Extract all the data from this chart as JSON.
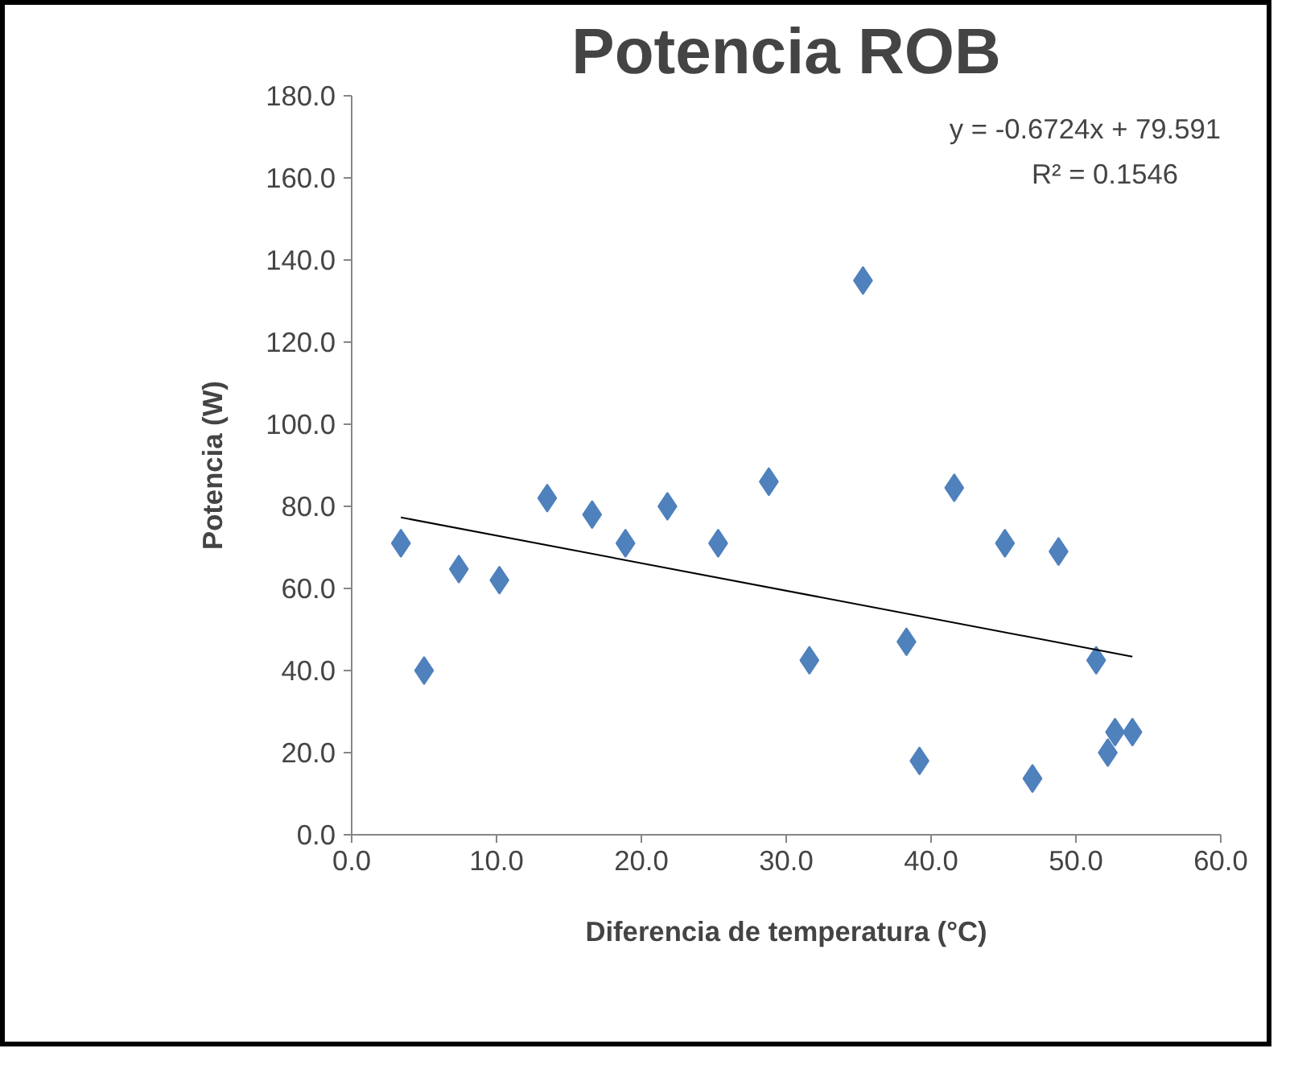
{
  "chart_data": {
    "type": "scatter",
    "title": "Potencia ROB",
    "xlabel": "Diferencia de temperatura (°C)",
    "ylabel": "Potencia (W)",
    "xlim": [
      0,
      60
    ],
    "ylim": [
      0,
      180
    ],
    "xticks": [
      {
        "value": 0,
        "label": "0.0"
      },
      {
        "value": 10,
        "label": "10.0"
      },
      {
        "value": 20,
        "label": "20.0"
      },
      {
        "value": 30,
        "label": "30.0"
      },
      {
        "value": 40,
        "label": "40.0"
      },
      {
        "value": 50,
        "label": "50.0"
      },
      {
        "value": 60,
        "label": "60.0"
      }
    ],
    "yticks": [
      {
        "value": 0,
        "label": "0.0"
      },
      {
        "value": 20,
        "label": "20.0"
      },
      {
        "value": 40,
        "label": "40.0"
      },
      {
        "value": 60,
        "label": "60.0"
      },
      {
        "value": 80,
        "label": "80.0"
      },
      {
        "value": 100,
        "label": "100.0"
      },
      {
        "value": 120,
        "label": "120.0"
      },
      {
        "value": 140,
        "label": "140.0"
      },
      {
        "value": 160,
        "label": "160.0"
      },
      {
        "value": 180,
        "label": "180.0"
      }
    ],
    "grid": false,
    "series": [
      {
        "marker": "diamond",
        "color": "#4f81bd",
        "x": [
          3.4,
          5.0,
          7.4,
          10.2,
          13.5,
          16.6,
          18.9,
          21.8,
          25.3,
          28.8,
          31.6,
          35.3,
          38.3,
          39.2,
          41.6,
          45.1,
          47.0,
          48.8,
          51.4,
          52.2,
          52.7,
          53.9
        ],
        "values": [
          71,
          40,
          64.7,
          62,
          82,
          78,
          71,
          80,
          71,
          86,
          42.5,
          135,
          47,
          18,
          84.5,
          71,
          13.7,
          69,
          42.5,
          20,
          25,
          25
        ]
      },
      {
        "type": "line",
        "marker": "none",
        "color": "#000000",
        "line_style": "solid",
        "x": [
          3.4,
          53.9
        ],
        "values": [
          77.3,
          43.4
        ]
      }
    ],
    "annotations": [
      "y = -0.6724x + 79.591",
      "R² = 0.1546"
    ]
  }
}
